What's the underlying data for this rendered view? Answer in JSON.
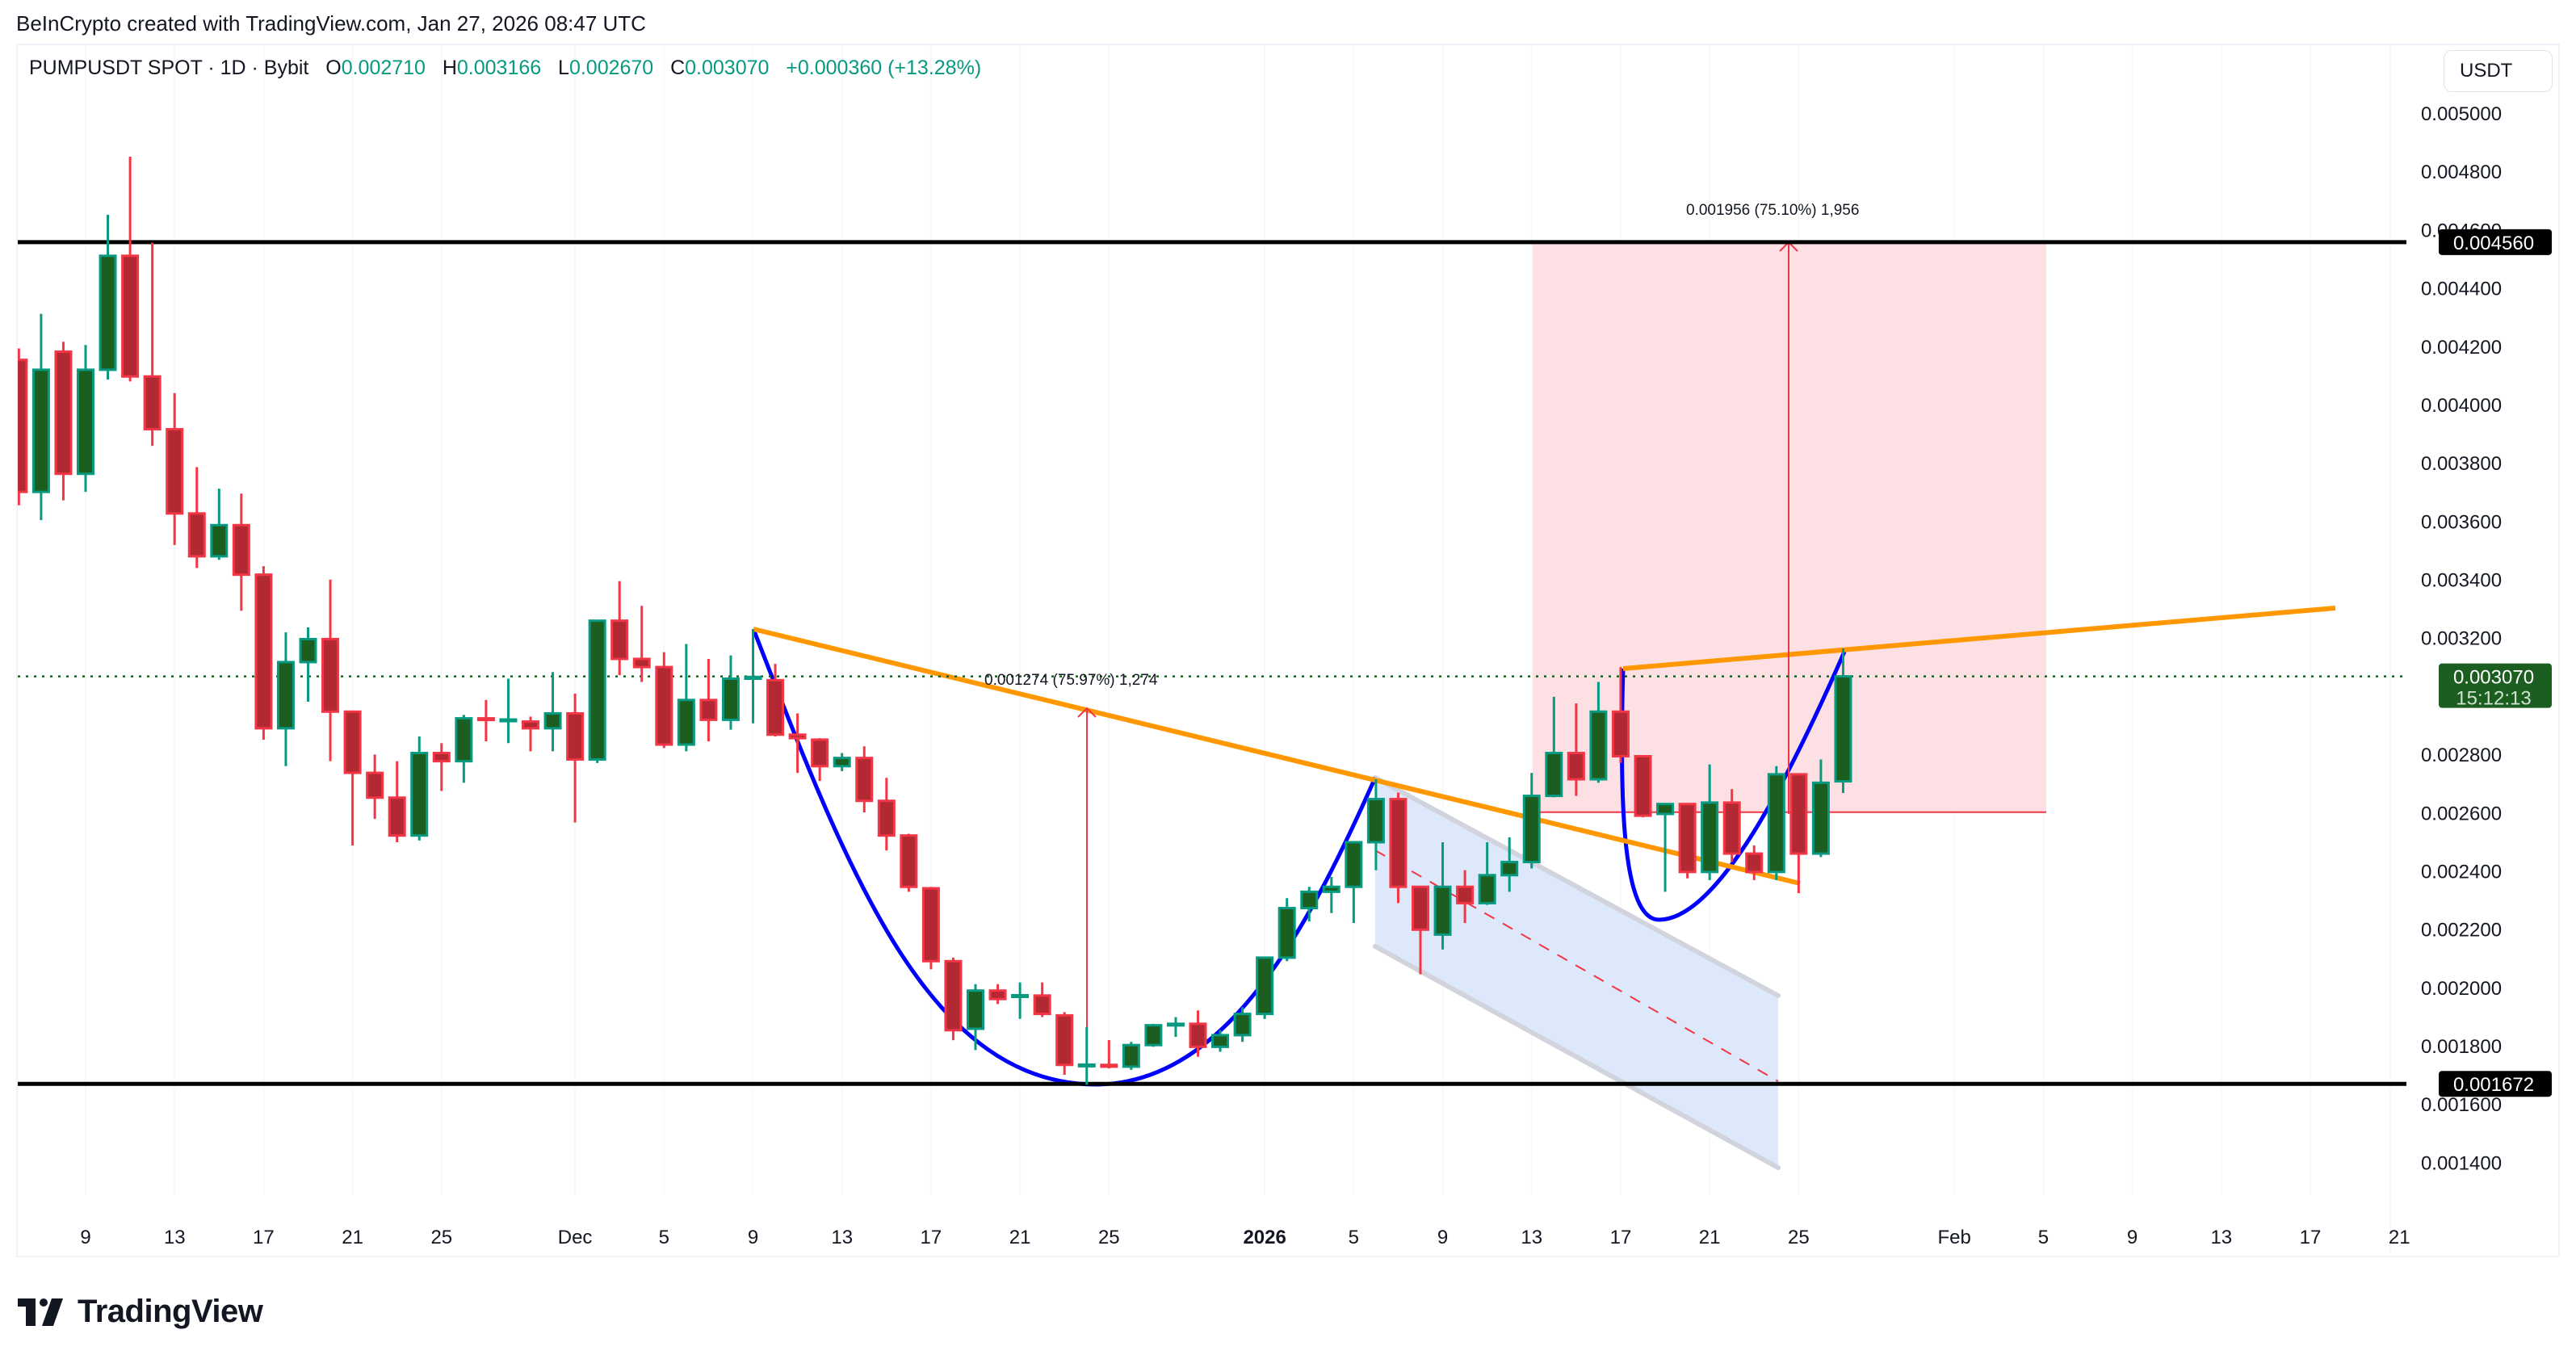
{
  "credit": "BeInCrypto created with TradingView.com, Jan 27, 2026 08:47 UTC",
  "legend": {
    "symbol": "PUMPUSDT SPOT · 1D · Bybit",
    "open_label": "O",
    "open": "0.002710",
    "high_label": "H",
    "high": "0.003166",
    "low_label": "L",
    "low": "0.002670",
    "close_label": "C",
    "close": "0.003070",
    "change": "+0.000360 (+13.28%)"
  },
  "price_axis": {
    "currency": "USDT",
    "ticks": [
      "0.005000",
      "0.004800",
      "0.004600",
      "0.004400",
      "0.004200",
      "0.004000",
      "0.003800",
      "0.003600",
      "0.003400",
      "0.003200",
      "0.002800",
      "0.002600",
      "0.002400",
      "0.002200",
      "0.002000",
      "0.001800",
      "0.001600",
      "0.001400"
    ],
    "current_price": "0.003070",
    "countdown": "15:12:13",
    "resistance_label": "0.004560",
    "support_label": "0.001672"
  },
  "time_axis": {
    "ticks": [
      {
        "label": "9",
        "d": 0,
        "bold": false
      },
      {
        "label": "13",
        "d": 4,
        "bold": false
      },
      {
        "label": "17",
        "d": 8,
        "bold": false
      },
      {
        "label": "21",
        "d": 12,
        "bold": false
      },
      {
        "label": "25",
        "d": 16,
        "bold": false
      },
      {
        "label": "Dec",
        "d": 22,
        "bold": false
      },
      {
        "label": "5",
        "d": 26,
        "bold": false
      },
      {
        "label": "9",
        "d": 30,
        "bold": false
      },
      {
        "label": "13",
        "d": 34,
        "bold": false
      },
      {
        "label": "17",
        "d": 38,
        "bold": false
      },
      {
        "label": "21",
        "d": 42,
        "bold": false
      },
      {
        "label": "25",
        "d": 46,
        "bold": false
      },
      {
        "label": "2026",
        "d": 53,
        "bold": true
      },
      {
        "label": "5",
        "d": 57,
        "bold": false
      },
      {
        "label": "9",
        "d": 61,
        "bold": false
      },
      {
        "label": "13",
        "d": 65,
        "bold": false
      },
      {
        "label": "17",
        "d": 69,
        "bold": false
      },
      {
        "label": "21",
        "d": 73,
        "bold": false
      },
      {
        "label": "25",
        "d": 77,
        "bold": false
      },
      {
        "label": "Feb",
        "d": 84,
        "bold": false
      },
      {
        "label": "5",
        "d": 88,
        "bold": false
      },
      {
        "label": "9",
        "d": 92,
        "bold": false
      },
      {
        "label": "13",
        "d": 96,
        "bold": false
      },
      {
        "label": "17",
        "d": 100,
        "bold": false
      },
      {
        "label": "21",
        "d": 104,
        "bold": false
      }
    ]
  },
  "annotations": {
    "measure_1": "0.001274 (75.97%) 1,274",
    "measure_2": "0.001956 (75.10%) 1,956"
  },
  "footer": {
    "brand": "TradingView"
  },
  "colors": {
    "up_body": "#1b5e20",
    "up_border": "#089981",
    "down_body": "#b22833",
    "down_border": "#f23645",
    "trendline": "#ff9800",
    "cup_curve": "#0000ff",
    "target_zone": "#fde0e3",
    "measure": "#f23645",
    "channel_fill": "#dbe8fb",
    "channel_edge": "#d1d4dc",
    "level_line": "#000000",
    "last_price": "#1b5e20"
  },
  "chart_data": {
    "type": "candlestick",
    "title": "PUMPUSDT SPOT · 1D · Bybit",
    "xlabel": "",
    "ylabel": "USDT",
    "ylim": [
      0.00125,
      0.0052
    ],
    "x_start_label": "Nov 6, 2025",
    "horizontal_levels": [
      0.00456,
      0.001672
    ],
    "last": {
      "open": 0.00271,
      "high": 0.003166,
      "low": 0.00267,
      "close": 0.00307,
      "change": 0.00036,
      "change_pct": 13.28
    },
    "candles": [
      {
        "date": "Nov 6",
        "d": -3,
        "o": 0.004156,
        "h": 0.004195,
        "l": 0.003657,
        "c": 0.003703
      },
      {
        "date": "Nov 7",
        "d": -2,
        "o": 0.003703,
        "h": 0.004314,
        "l": 0.003606,
        "c": 0.004122
      },
      {
        "date": "Nov 8",
        "d": -1,
        "o": 0.004184,
        "h": 0.004218,
        "l": 0.003674,
        "c": 0.003765
      },
      {
        "date": "Nov 9",
        "d": 0,
        "o": 0.003765,
        "h": 0.004207,
        "l": 0.003703,
        "c": 0.004122
      },
      {
        "date": "Nov 10",
        "d": 1,
        "o": 0.004122,
        "h": 0.004654,
        "l": 0.004088,
        "c": 0.004513
      },
      {
        "date": "Nov 11",
        "d": 2,
        "o": 0.004513,
        "h": 0.004853,
        "l": 0.004082,
        "c": 0.004099
      },
      {
        "date": "Nov 12",
        "d": 3,
        "o": 0.004099,
        "h": 0.004558,
        "l": 0.003861,
        "c": 0.003918
      },
      {
        "date": "Nov 13",
        "d": 4,
        "o": 0.003918,
        "h": 0.004042,
        "l": 0.003521,
        "c": 0.003629
      },
      {
        "date": "Nov 14",
        "d": 5,
        "o": 0.003629,
        "h": 0.003788,
        "l": 0.003442,
        "c": 0.003482
      },
      {
        "date": "Nov 15",
        "d": 6,
        "o": 0.003482,
        "h": 0.003714,
        "l": 0.00347,
        "c": 0.003589
      },
      {
        "date": "Nov 16",
        "d": 7,
        "o": 0.003589,
        "h": 0.003697,
        "l": 0.003295,
        "c": 0.003419
      },
      {
        "date": "Nov 17",
        "d": 8,
        "o": 0.003419,
        "h": 0.003448,
        "l": 0.002853,
        "c": 0.002892
      },
      {
        "date": "Nov 18",
        "d": 9,
        "o": 0.002892,
        "h": 0.003221,
        "l": 0.002762,
        "c": 0.003119
      },
      {
        "date": "Nov 19",
        "d": 10,
        "o": 0.003119,
        "h": 0.003238,
        "l": 0.002983,
        "c": 0.003198
      },
      {
        "date": "Nov 20",
        "d": 11,
        "o": 0.003198,
        "h": 0.003402,
        "l": 0.002779,
        "c": 0.002949
      },
      {
        "date": "Nov 21",
        "d": 12,
        "o": 0.002949,
        "h": 0.00283,
        "l": 0.00249,
        "c": 0.002739
      },
      {
        "date": "Nov 22",
        "d": 13,
        "o": 0.002739,
        "h": 0.002802,
        "l": 0.002581,
        "c": 0.002654
      },
      {
        "date": "Nov 23",
        "d": 14,
        "o": 0.002654,
        "h": 0.002779,
        "l": 0.002501,
        "c": 0.002524
      },
      {
        "date": "Nov 24",
        "d": 15,
        "o": 0.002524,
        "h": 0.002864,
        "l": 0.002507,
        "c": 0.002807
      },
      {
        "date": "Nov 25",
        "d": 16,
        "o": 0.002807,
        "h": 0.002841,
        "l": 0.002677,
        "c": 0.002779
      },
      {
        "date": "Nov 26",
        "d": 17,
        "o": 0.002779,
        "h": 0.002938,
        "l": 0.002705,
        "c": 0.002926
      },
      {
        "date": "Nov 27",
        "d": 18,
        "o": 0.002926,
        "h": 0.002989,
        "l": 0.002847,
        "c": 0.002921
      },
      {
        "date": "Nov 28",
        "d": 19,
        "o": 0.002921,
        "h": 0.003062,
        "l": 0.002841,
        "c": 0.002922
      },
      {
        "date": "Nov 29",
        "d": 20,
        "o": 0.002915,
        "h": 0.002932,
        "l": 0.002813,
        "c": 0.002892
      },
      {
        "date": "Nov 30",
        "d": 21,
        "o": 0.002892,
        "h": 0.003085,
        "l": 0.002813,
        "c": 0.002943
      },
      {
        "date": "Dec 1",
        "d": 22,
        "o": 0.002943,
        "h": 0.003011,
        "l": 0.002569,
        "c": 0.002785
      },
      {
        "date": "Dec 2",
        "d": 23,
        "o": 0.002785,
        "h": 0.003255,
        "l": 0.002773,
        "c": 0.003261
      },
      {
        "date": "Dec 3",
        "d": 24,
        "o": 0.003261,
        "h": 0.003397,
        "l": 0.003074,
        "c": 0.00313
      },
      {
        "date": "Dec 4",
        "d": 25,
        "o": 0.00313,
        "h": 0.003312,
        "l": 0.003051,
        "c": 0.003102
      },
      {
        "date": "Dec 5",
        "d": 26,
        "o": 0.003102,
        "h": 0.003153,
        "l": 0.002824,
        "c": 0.002836
      },
      {
        "date": "Dec 6",
        "d": 27,
        "o": 0.002836,
        "h": 0.003181,
        "l": 0.002813,
        "c": 0.002989
      },
      {
        "date": "Dec 7",
        "d": 28,
        "o": 0.002989,
        "h": 0.00313,
        "l": 0.002847,
        "c": 0.002921
      },
      {
        "date": "Dec 8",
        "d": 29,
        "o": 0.002921,
        "h": 0.003142,
        "l": 0.002887,
        "c": 0.003062
      },
      {
        "date": "Dec 9",
        "d": 30,
        "o": 0.003062,
        "h": 0.003232,
        "l": 0.002909,
        "c": 0.003068
      },
      {
        "date": "Dec 10",
        "d": 31,
        "o": 0.003057,
        "h": 0.003113,
        "l": 0.002864,
        "c": 0.00287
      },
      {
        "date": "Dec 11",
        "d": 32,
        "o": 0.00287,
        "h": 0.002943,
        "l": 0.002739,
        "c": 0.002858
      },
      {
        "date": "Dec 12",
        "d": 33,
        "o": 0.002853,
        "h": 0.002858,
        "l": 0.002711,
        "c": 0.002762
      },
      {
        "date": "Dec 13",
        "d": 34,
        "o": 0.002762,
        "h": 0.002807,
        "l": 0.002745,
        "c": 0.00279
      },
      {
        "date": "Dec 14",
        "d": 35,
        "o": 0.00279,
        "h": 0.00283,
        "l": 0.002603,
        "c": 0.002643
      },
      {
        "date": "Dec 15",
        "d": 36,
        "o": 0.002643,
        "h": 0.002722,
        "l": 0.002473,
        "c": 0.002524
      },
      {
        "date": "Dec 16",
        "d": 37,
        "o": 0.002524,
        "h": 0.00253,
        "l": 0.002331,
        "c": 0.002348
      },
      {
        "date": "Dec 17",
        "d": 38,
        "o": 0.002343,
        "h": 0.002348,
        "l": 0.002065,
        "c": 0.002093
      },
      {
        "date": "Dec 18",
        "d": 39,
        "o": 0.002093,
        "h": 0.002105,
        "l": 0.001822,
        "c": 0.001856
      },
      {
        "date": "Dec 19",
        "d": 40,
        "o": 0.001861,
        "h": 0.002014,
        "l": 0.001788,
        "c": 0.001992
      },
      {
        "date": "Dec 20",
        "d": 41,
        "o": 0.001992,
        "h": 0.002014,
        "l": 0.001946,
        "c": 0.001963
      },
      {
        "date": "Dec 21",
        "d": 42,
        "o": 0.001975,
        "h": 0.00202,
        "l": 0.001895,
        "c": 0.001976
      },
      {
        "date": "Dec 22",
        "d": 43,
        "o": 0.001975,
        "h": 0.00202,
        "l": 0.001901,
        "c": 0.001912
      },
      {
        "date": "Dec 23",
        "d": 44,
        "o": 0.001907,
        "h": 0.001918,
        "l": 0.001703,
        "c": 0.001737
      },
      {
        "date": "Dec 24",
        "d": 45,
        "o": 0.001737,
        "h": 0.001867,
        "l": 0.001669,
        "c": 0.001738
      },
      {
        "date": "Dec 25",
        "d": 46,
        "o": 0.001737,
        "h": 0.001822,
        "l": 0.001725,
        "c": 0.001731
      },
      {
        "date": "Dec 26",
        "d": 47,
        "o": 0.001731,
        "h": 0.001816,
        "l": 0.00172,
        "c": 0.001805
      },
      {
        "date": "Dec 27",
        "d": 48,
        "o": 0.001805,
        "h": 0.001878,
        "l": 0.001799,
        "c": 0.001873
      },
      {
        "date": "Dec 28",
        "d": 49,
        "o": 0.001873,
        "h": 0.001901,
        "l": 0.001833,
        "c": 0.001878
      },
      {
        "date": "Dec 29",
        "d": 50,
        "o": 0.001878,
        "h": 0.001924,
        "l": 0.001765,
        "c": 0.001799
      },
      {
        "date": "Dec 30",
        "d": 51,
        "o": 0.001799,
        "h": 0.001856,
        "l": 0.001782,
        "c": 0.001839
      },
      {
        "date": "Dec 31",
        "d": 52,
        "o": 0.001839,
        "h": 0.001935,
        "l": 0.001816,
        "c": 0.001912
      },
      {
        "date": "Jan 1",
        "d": 53,
        "o": 0.001912,
        "h": 0.002025,
        "l": 0.001895,
        "c": 0.002105
      },
      {
        "date": "Jan 2",
        "d": 54,
        "o": 0.002105,
        "h": 0.002309,
        "l": 0.002093,
        "c": 0.002275
      },
      {
        "date": "Jan 3",
        "d": 55,
        "o": 0.002275,
        "h": 0.002348,
        "l": 0.002229,
        "c": 0.002331
      },
      {
        "date": "Jan 4",
        "d": 56,
        "o": 0.002331,
        "h": 0.002382,
        "l": 0.002258,
        "c": 0.002348
      },
      {
        "date": "Jan 5",
        "d": 57,
        "o": 0.002348,
        "h": 0.002433,
        "l": 0.002224,
        "c": 0.002501
      },
      {
        "date": "Jan 6",
        "d": 58,
        "o": 0.002501,
        "h": 0.002717,
        "l": 0.002405,
        "c": 0.002649
      },
      {
        "date": "Jan 7",
        "d": 59,
        "o": 0.002649,
        "h": 0.002671,
        "l": 0.002292,
        "c": 0.002348
      },
      {
        "date": "Jan 8",
        "d": 60,
        "o": 0.002348,
        "h": 0.002309,
        "l": 0.002048,
        "c": 0.002201
      },
      {
        "date": "Jan 9",
        "d": 61,
        "o": 0.002184,
        "h": 0.002501,
        "l": 0.002133,
        "c": 0.002348
      },
      {
        "date": "Jan 10",
        "d": 62,
        "o": 0.002348,
        "h": 0.002405,
        "l": 0.002224,
        "c": 0.002292
      },
      {
        "date": "Jan 11",
        "d": 63,
        "o": 0.002292,
        "h": 0.002501,
        "l": 0.002286,
        "c": 0.002388
      },
      {
        "date": "Jan 12",
        "d": 64,
        "o": 0.002388,
        "h": 0.002518,
        "l": 0.002331,
        "c": 0.002433
      },
      {
        "date": "Jan 13",
        "d": 65,
        "o": 0.002433,
        "h": 0.002739,
        "l": 0.002411,
        "c": 0.00266
      },
      {
        "date": "Jan 14",
        "d": 66,
        "o": 0.00266,
        "h": 0.003,
        "l": 0.002655,
        "c": 0.002807
      },
      {
        "date": "Jan 15",
        "d": 67,
        "o": 0.002807,
        "h": 0.002977,
        "l": 0.00266,
        "c": 0.002717
      },
      {
        "date": "Jan 16",
        "d": 68,
        "o": 0.002717,
        "h": 0.003051,
        "l": 0.002705,
        "c": 0.002949
      },
      {
        "date": "Jan 17",
        "d": 69,
        "o": 0.002949,
        "h": 0.003102,
        "l": 0.002773,
        "c": 0.002796
      },
      {
        "date": "Jan 18",
        "d": 70,
        "o": 0.002796,
        "h": 0.002694,
        "l": 0.002586,
        "c": 0.002592
      },
      {
        "date": "Jan 19",
        "d": 71,
        "o": 0.002598,
        "h": 0.002626,
        "l": 0.002331,
        "c": 0.002632
      },
      {
        "date": "Jan 20",
        "d": 72,
        "o": 0.002632,
        "h": 0.002632,
        "l": 0.002377,
        "c": 0.002399
      },
      {
        "date": "Jan 21",
        "d": 73,
        "o": 0.002399,
        "h": 0.002768,
        "l": 0.002371,
        "c": 0.002637
      },
      {
        "date": "Jan 22",
        "d": 74,
        "o": 0.002637,
        "h": 0.002683,
        "l": 0.002433,
        "c": 0.002462
      },
      {
        "date": "Jan 23",
        "d": 75,
        "o": 0.002462,
        "h": 0.00249,
        "l": 0.002371,
        "c": 0.002399
      },
      {
        "date": "Jan 24",
        "d": 76,
        "o": 0.002399,
        "h": 0.002762,
        "l": 0.002371,
        "c": 0.002734
      },
      {
        "date": "Jan 25",
        "d": 77,
        "o": 0.002734,
        "h": 0.002717,
        "l": 0.002326,
        "c": 0.002462
      },
      {
        "date": "Jan 26",
        "d": 78,
        "o": 0.002462,
        "h": 0.002785,
        "l": 0.00245,
        "c": 0.002705
      },
      {
        "date": "Jan 27",
        "d": 79,
        "o": 0.00271,
        "h": 0.003166,
        "l": 0.00267,
        "c": 0.00307
      }
    ]
  }
}
